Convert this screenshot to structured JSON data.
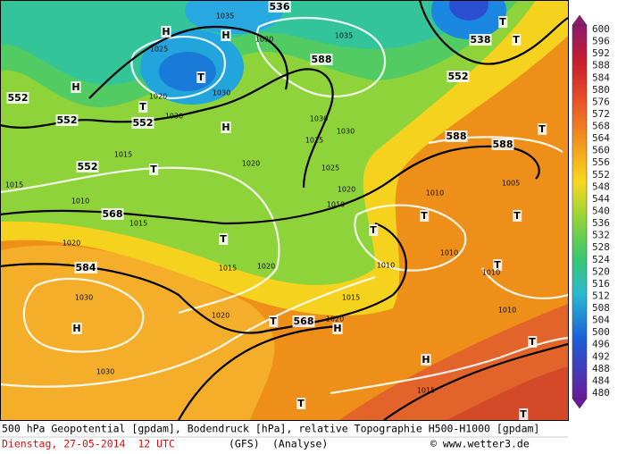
{
  "colorbar": {
    "values": [
      600,
      596,
      592,
      588,
      584,
      580,
      576,
      572,
      568,
      564,
      560,
      556,
      552,
      548,
      544,
      540,
      536,
      532,
      528,
      524,
      520,
      516,
      512,
      508,
      504,
      500,
      496,
      492,
      488,
      484,
      480
    ]
  },
  "map": {
    "labels": [
      "1035",
      "536",
      "H",
      "H",
      "1025",
      "1030",
      "1035",
      "T",
      "1020",
      "1030",
      "H",
      "552",
      "552",
      "552",
      "T",
      "1030",
      "H",
      "588",
      "538",
      "T",
      "552",
      "T",
      "1030",
      "1030",
      "1025",
      "588",
      "588",
      "1020",
      "T",
      "1015",
      "552",
      "1015",
      "1010",
      "568",
      "1015",
      "1025",
      "1020",
      "1010",
      "1010",
      "T",
      "T",
      "T",
      "T",
      "1020",
      "584",
      "1015",
      "1020",
      "1010",
      "1010",
      "T",
      "1010",
      "1030",
      "1015",
      "H",
      "1020",
      "T",
      "568",
      "1020",
      "H",
      "1010",
      "T",
      "H",
      "1030",
      "1015",
      "T",
      "T",
      "T",
      "1005"
    ]
  },
  "footer": {
    "description": "500 hPa Geopotential [gpdam], Bodendruck [hPa], relative Topographie H500-H1000 [gpdam]",
    "date": "Dienstag, 27-05-2014  12 UTC",
    "model": "(GFS)",
    "run": "(Analyse)",
    "credit": "© www.wetter3.de"
  }
}
